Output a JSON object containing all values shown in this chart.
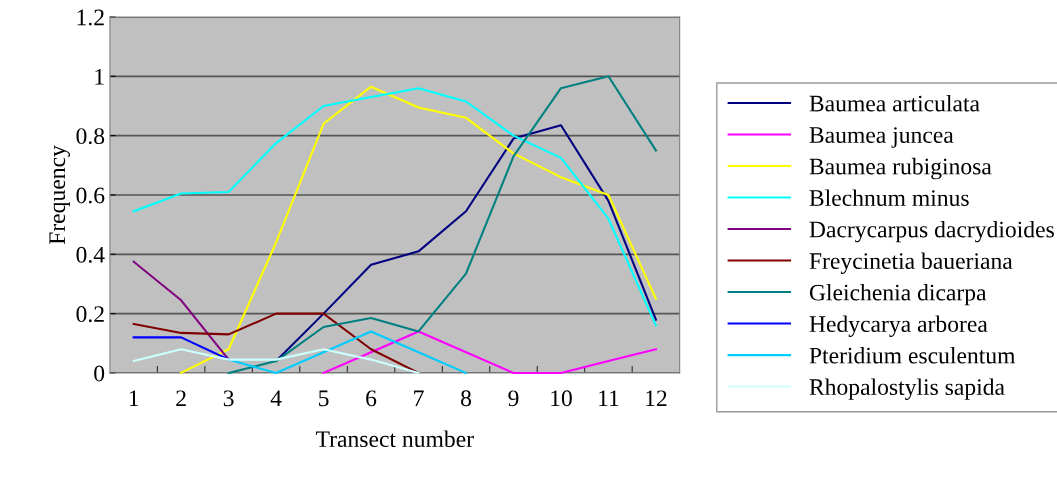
{
  "chart_data": {
    "type": "line",
    "xlabel": "Transect number",
    "ylabel": "Frequency",
    "categories": [
      "1",
      "2",
      "3",
      "4",
      "5",
      "6",
      "7",
      "8",
      "9",
      "10",
      "11",
      "12"
    ],
    "ylim": [
      0,
      1.2
    ],
    "yticks": [
      0,
      0.2,
      0.4,
      0.6,
      0.8,
      1,
      1.2
    ],
    "grid": "y",
    "legend": "right",
    "marker": "none",
    "line_style": "solid",
    "series": [
      {
        "name": "Baumea articulata",
        "color": "#000080",
        "values": [
          null,
          null,
          null,
          0.04,
          0.2,
          0.365,
          0.41,
          0.545,
          0.79,
          0.835,
          0.58,
          0.18
        ]
      },
      {
        "name": "Baumea juncea",
        "color": "#ff00ff",
        "values": [
          null,
          null,
          null,
          null,
          0,
          0.07,
          0.14,
          0.07,
          0,
          0,
          0.04,
          0.08
        ]
      },
      {
        "name": "Baumea rubiginosa",
        "color": "#ffff00",
        "values": [
          null,
          0,
          0.08,
          0.44,
          0.84,
          0.965,
          0.895,
          0.86,
          0.74,
          0.66,
          0.6,
          0.25
        ]
      },
      {
        "name": "Blechnum minus",
        "color": "#00ffff",
        "values": [
          0.545,
          0.605,
          0.61,
          0.775,
          0.9,
          0.93,
          0.96,
          0.915,
          0.8,
          0.725,
          0.52,
          0.16
        ]
      },
      {
        "name": "Dacrycarpus dacrydioides",
        "color": "#800080",
        "values": [
          0.375,
          0.245,
          0.045,
          null,
          null,
          null,
          null,
          null,
          null,
          null,
          null,
          null
        ]
      },
      {
        "name": "Freycinetia baueriana",
        "color": "#800000",
        "values": [
          0.165,
          0.135,
          0.13,
          0.2,
          0.2,
          0.08,
          0,
          null,
          null,
          null,
          null,
          null
        ]
      },
      {
        "name": "Gleichenia dicarpa",
        "color": "#008080",
        "values": [
          null,
          null,
          0,
          0.04,
          0.155,
          0.185,
          0.14,
          0.335,
          0.73,
          0.96,
          1.0,
          0.75
        ]
      },
      {
        "name": "Hedycarya arborea",
        "color": "#0000ff",
        "values": [
          0.12,
          0.12,
          0.045,
          null,
          null,
          null,
          null,
          null,
          null,
          null,
          null,
          null
        ]
      },
      {
        "name": "Pteridium esculentum",
        "color": "#00ccff",
        "values": [
          null,
          null,
          0.045,
          0,
          0.07,
          0.14,
          0.07,
          0,
          null,
          null,
          null,
          null
        ]
      },
      {
        "name": "Rhopalostylis sapida",
        "color": "#ccffff",
        "values": [
          0.04,
          0.08,
          0.045,
          0.045,
          0.08,
          0.045,
          0,
          null,
          null,
          null,
          null,
          null
        ]
      }
    ]
  }
}
